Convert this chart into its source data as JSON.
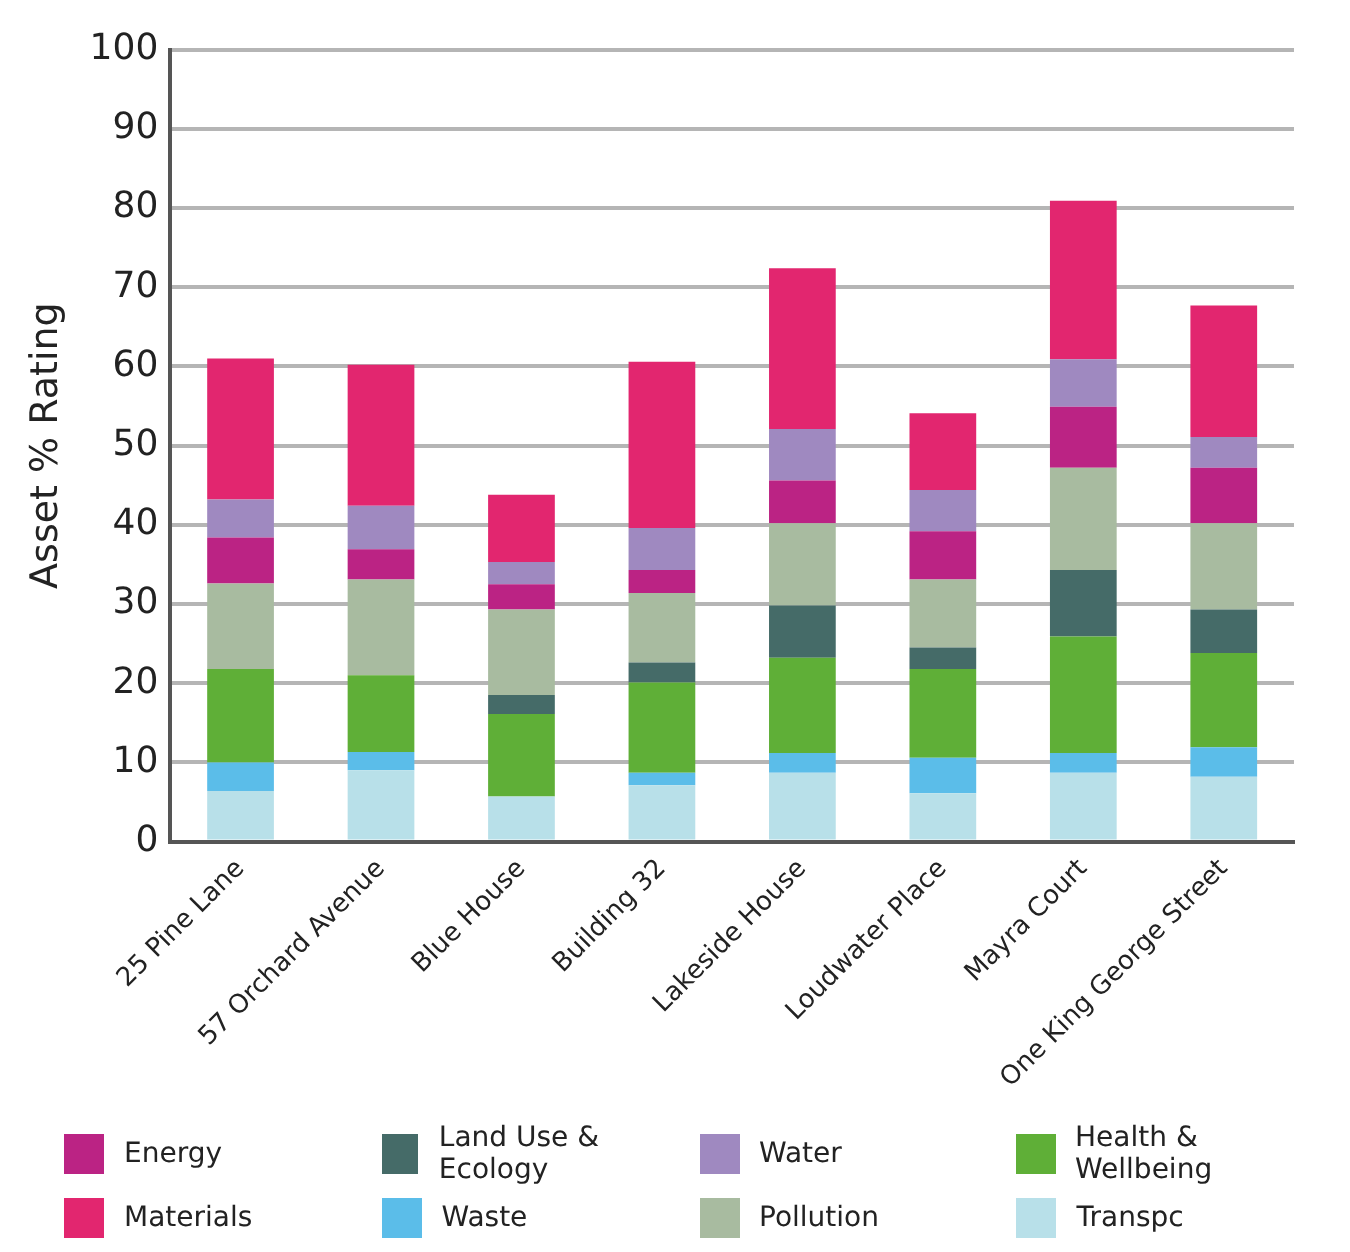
{
  "chart_data": {
    "type": "bar",
    "stacked": true,
    "ylabel": "Asset % Rating",
    "categories": [
      "25 Pine Lane",
      "57 Orchard Avenue",
      "Blue House",
      "Building 32",
      "Lakeside House",
      "Loudwater Place",
      "Mayra Court",
      "One King George Street"
    ],
    "series": [
      {
        "name": "Transpc",
        "color": "#b8e0e9",
        "values": [
          6.4,
          9,
          5.7,
          7.1,
          8.7,
          6.1,
          8.7,
          8.2
        ]
      },
      {
        "name": "Waste",
        "color": "#5bbde9",
        "values": [
          3.6,
          2.3,
          0,
          1.6,
          2.5,
          4.5,
          2.5,
          3.7
        ]
      },
      {
        "name": "Health & Wellbeing",
        "color": "#5faf37",
        "values": [
          11.8,
          9.7,
          10.4,
          11.4,
          12,
          11.2,
          14.7,
          11.9
        ]
      },
      {
        "name": "Land Use & Ecology",
        "color": "#456b68",
        "values": [
          0,
          0,
          2.4,
          2.5,
          6.6,
          2.7,
          8.4,
          5.5
        ]
      },
      {
        "name": "Pollution",
        "color": "#a8bba0",
        "values": [
          10.8,
          12.1,
          10.8,
          8.8,
          10.4,
          8.6,
          12.9,
          10.9
        ]
      },
      {
        "name": "Energy",
        "color": "#bb2384",
        "values": [
          5.8,
          3.8,
          3.2,
          2.9,
          5.4,
          6.1,
          7.7,
          7
        ]
      },
      {
        "name": "Water",
        "color": "#9f89c0",
        "values": [
          4.8,
          5.5,
          2.8,
          5.3,
          6.5,
          5.2,
          6,
          3.9
        ]
      },
      {
        "name": "Materials",
        "color": "#e2266f",
        "values": [
          17.8,
          17.8,
          8.5,
          21,
          20.3,
          9.7,
          20,
          16.6
        ]
      }
    ],
    "ylim": [
      0,
      100
    ],
    "yticks": [
      0,
      10,
      20,
      30,
      40,
      50,
      60,
      70,
      80,
      90,
      100
    ],
    "grid": "y",
    "legend": "bottom"
  }
}
